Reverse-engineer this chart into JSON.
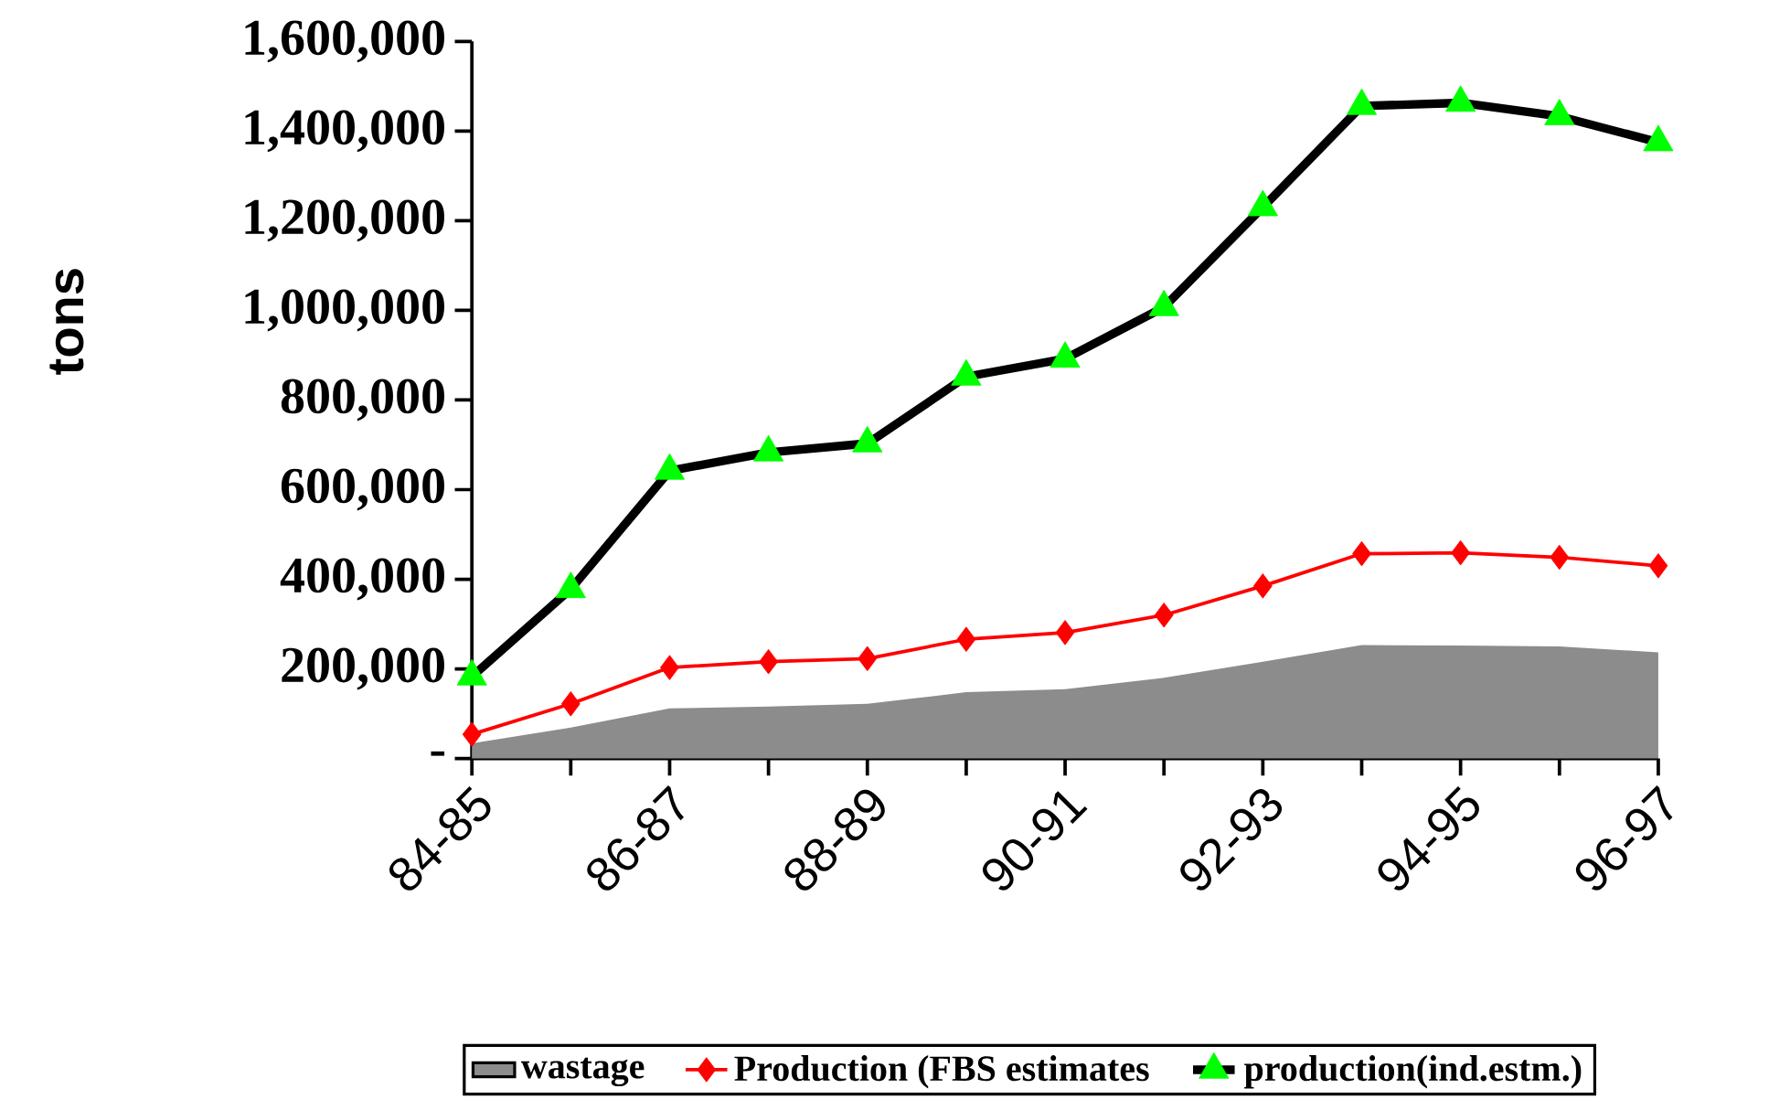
{
  "chart_data": {
    "type": "line",
    "ylabel": "tons",
    "categories": [
      "84-85",
      null,
      "86-87",
      null,
      "88-89",
      null,
      "90-91",
      null,
      "92-93",
      null,
      "94-95",
      null,
      "96-97"
    ],
    "ylim": [
      0,
      1600000
    ],
    "yticks": [
      {
        "value": 0,
        "label": "-"
      },
      {
        "value": 200000,
        "label": "200,000"
      },
      {
        "value": 400000,
        "label": "400,000"
      },
      {
        "value": 600000,
        "label": "600,000"
      },
      {
        "value": 800000,
        "label": "800,000"
      },
      {
        "value": 1000000,
        "label": "1,000,000"
      },
      {
        "value": 1200000,
        "label": "1,200,000"
      },
      {
        "value": 1400000,
        "label": "1,400,000"
      },
      {
        "value": 1600000,
        "label": "1,600,000"
      }
    ],
    "grid": false,
    "legend": "bottom",
    "series": [
      {
        "name": "wastage",
        "type": "area",
        "color": "#8c8c8c",
        "values": [
          34000,
          69000,
          112000,
          116000,
          122000,
          148000,
          155000,
          180000,
          216000,
          253000,
          252000,
          250000,
          237000
        ]
      },
      {
        "name": "Production (FBS estimates",
        "type": "line",
        "color": "#ff0000",
        "marker": "diamond",
        "values": [
          54000,
          122000,
          203000,
          216000,
          223000,
          266000,
          281000,
          320000,
          385000,
          457000,
          459000,
          449000,
          430000
        ]
      },
      {
        "name": "production(ind.estm.)",
        "type": "line",
        "color": "#000000",
        "marker": "triangle",
        "values": [
          183000,
          378000,
          642000,
          683000,
          703000,
          852000,
          892000,
          1007000,
          1230000,
          1456000,
          1463000,
          1433000,
          1375000
        ]
      }
    ]
  }
}
